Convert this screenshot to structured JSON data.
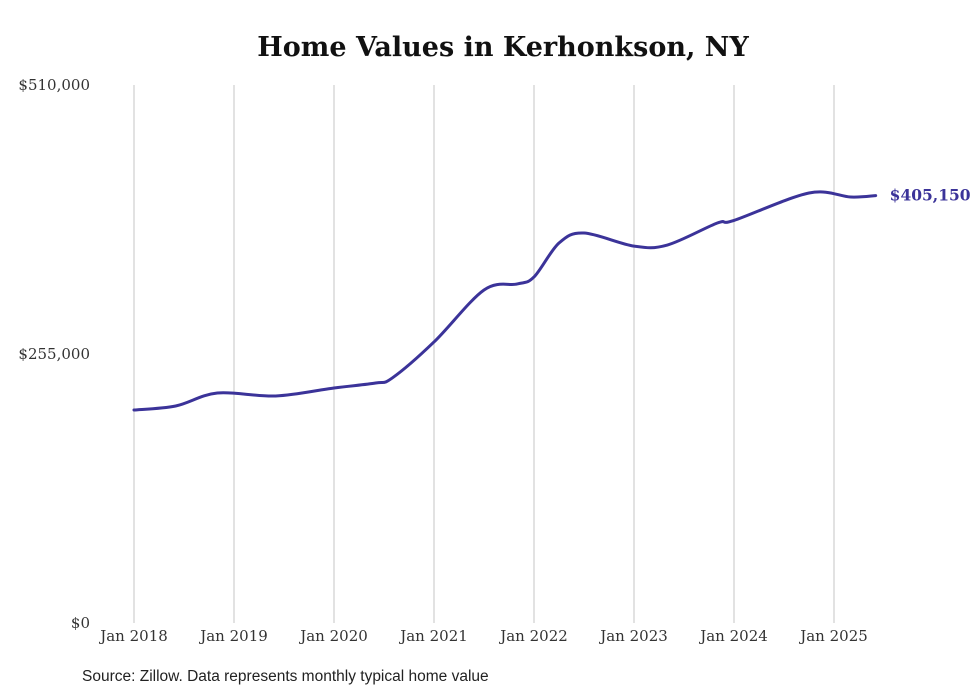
{
  "chart_data": {
    "type": "line",
    "title": "Home Values in Kerhonkson, NY",
    "xlabel": "",
    "ylabel": "",
    "ylim": [
      0,
      510000
    ],
    "yticks": [
      0,
      255000,
      510000
    ],
    "ytick_labels": [
      "$0",
      "$255,000",
      "$510,000"
    ],
    "xticks": [
      "2018-01",
      "2019-01",
      "2020-01",
      "2021-01",
      "2022-01",
      "2023-01",
      "2024-01",
      "2025-01"
    ],
    "xtick_labels": [
      "Jan 2018",
      "Jan 2019",
      "Jan 2020",
      "Jan 2021",
      "Jan 2022",
      "Jan 2023",
      "Jan 2024",
      "Jan 2025"
    ],
    "grid": "vertical",
    "series": [
      {
        "name": "Typical home value",
        "color": "#3b3399",
        "x": [
          "2018-01",
          "2018-06",
          "2018-11",
          "2019-06",
          "2020-01",
          "2020-06",
          "2020-08",
          "2021-01",
          "2021-07",
          "2021-11",
          "2022-01",
          "2022-04",
          "2022-07",
          "2023-01",
          "2023-05",
          "2023-11",
          "2024-01",
          "2024-10",
          "2025-03",
          "2025-06"
        ],
        "values": [
          201900,
          205700,
          218000,
          215200,
          222800,
          227500,
          232300,
          266400,
          315700,
          321400,
          328000,
          360200,
          369700,
          357300,
          358300,
          379200,
          381600,
          407600,
          403800,
          405150
        ]
      }
    ],
    "end_label": "$405,150",
    "source": "Source: Zillow. Data represents monthly typical home value"
  }
}
